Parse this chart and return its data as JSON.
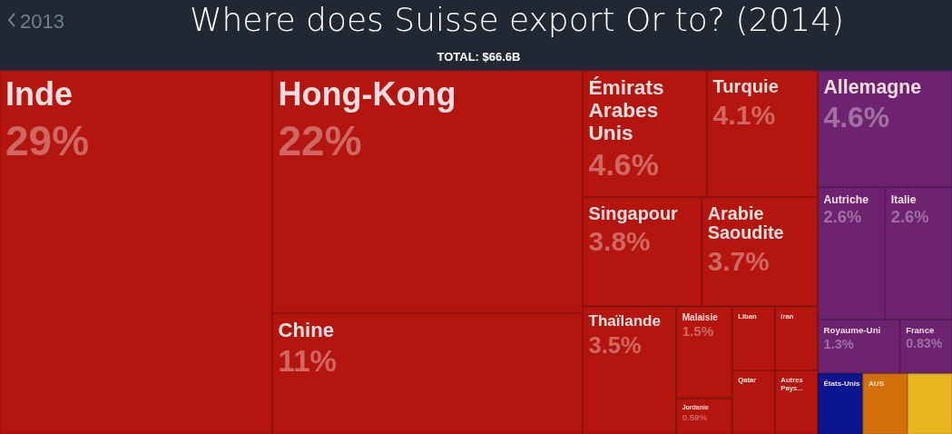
{
  "chart_data": {
    "type": "other",
    "title": "Where does Suisse export Or to? (2014)",
    "subtitle": "TOTAL: $66.6B",
    "annotations": [
      "2013"
    ],
    "categories": [
      "Inde",
      "Hong-Kong",
      "Chine",
      "Émirats Arabes Unis",
      "Turquie",
      "Singapour",
      "Arabie Saoudite",
      "Thaïlande",
      "Malaisie",
      "Jordanie",
      "Liban",
      "Iran",
      "Qatar",
      "Autres Pays...",
      "Allemagne",
      "Autriche",
      "Italie",
      "Royaume-Uni",
      "France",
      "États-Unis",
      "AUS",
      null
    ],
    "values": [
      29,
      22,
      11,
      4.6,
      4.1,
      3.8,
      3.7,
      3.5,
      1.5,
      0.59,
      null,
      null,
      null,
      null,
      4.6,
      2.6,
      2.6,
      1.3,
      0.83,
      null,
      null,
      null
    ],
    "value_labels": [
      "29%",
      "22%",
      "11%",
      "4.6%",
      "4.1%",
      "3.8%",
      "3.7%",
      "3.5%",
      "1.5%",
      "0.59%",
      null,
      null,
      null,
      null,
      "4.6%",
      "2.6%",
      "2.6%",
      "1.3%",
      "0.83%",
      null,
      null,
      null
    ],
    "colors": [
      "#b5150f",
      "#b5150f",
      "#b5150f",
      "#b5150f",
      "#b5150f",
      "#b5150f",
      "#b5150f",
      "#b5150f",
      "#b5150f",
      "#b5150f",
      "#b5150f",
      "#b5150f",
      "#b5150f",
      "#b5150f",
      "#6e2370",
      "#6e2370",
      "#6e2370",
      "#6e2370",
      "#6e2370",
      "#0c1590",
      "#d4700a",
      "#e8b520"
    ]
  }
}
